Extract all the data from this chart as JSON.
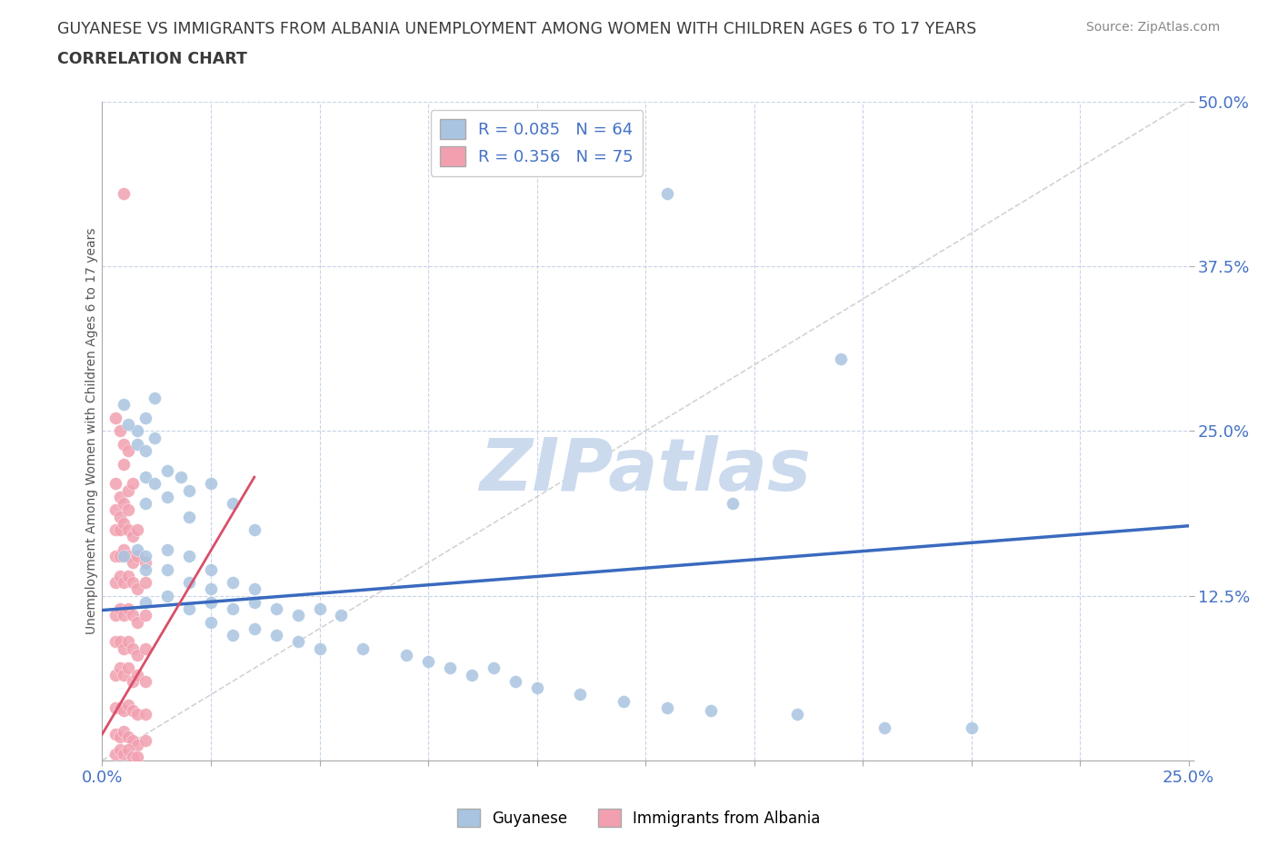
{
  "title_line1": "GUYANESE VS IMMIGRANTS FROM ALBANIA UNEMPLOYMENT AMONG WOMEN WITH CHILDREN AGES 6 TO 17 YEARS",
  "title_line2": "CORRELATION CHART",
  "source_text": "Source: ZipAtlas.com",
  "ylabel": "Unemployment Among Women with Children Ages 6 to 17 years",
  "xlim": [
    0.0,
    0.25
  ],
  "ylim": [
    0.0,
    0.5
  ],
  "xtick_vals": [
    0.0,
    0.025,
    0.05,
    0.075,
    0.1,
    0.125,
    0.15,
    0.175,
    0.2,
    0.225,
    0.25
  ],
  "ytick_vals": [
    0.0,
    0.125,
    0.25,
    0.375,
    0.5
  ],
  "ytick_labels": [
    "",
    "12.5%",
    "25.0%",
    "37.5%",
    "50.0%"
  ],
  "blue_color": "#a8c4e0",
  "pink_color": "#f2a0b0",
  "blue_line_color": "#3a6abf",
  "pink_line_color": "#d94f6a",
  "diagonal_color": "#c8c8c8",
  "watermark_color": "#ccdaee",
  "grid_color": "#c8d4e8",
  "title_color": "#3a3a3a",
  "tick_label_color": "#4472c4",
  "source_color": "#888888",
  "blue_scatter": [
    [
      0.005,
      0.27
    ],
    [
      0.008,
      0.25
    ],
    [
      0.01,
      0.26
    ],
    [
      0.012,
      0.275
    ],
    [
      0.008,
      0.24
    ],
    [
      0.01,
      0.235
    ],
    [
      0.012,
      0.245
    ],
    [
      0.006,
      0.255
    ],
    [
      0.01,
      0.215
    ],
    [
      0.012,
      0.21
    ],
    [
      0.015,
      0.22
    ],
    [
      0.018,
      0.215
    ],
    [
      0.01,
      0.195
    ],
    [
      0.015,
      0.2
    ],
    [
      0.02,
      0.205
    ],
    [
      0.025,
      0.21
    ],
    [
      0.02,
      0.185
    ],
    [
      0.03,
      0.195
    ],
    [
      0.035,
      0.175
    ],
    [
      0.005,
      0.155
    ],
    [
      0.008,
      0.16
    ],
    [
      0.01,
      0.155
    ],
    [
      0.015,
      0.16
    ],
    [
      0.01,
      0.145
    ],
    [
      0.015,
      0.145
    ],
    [
      0.02,
      0.155
    ],
    [
      0.025,
      0.145
    ],
    [
      0.02,
      0.135
    ],
    [
      0.025,
      0.13
    ],
    [
      0.03,
      0.135
    ],
    [
      0.035,
      0.13
    ],
    [
      0.01,
      0.12
    ],
    [
      0.015,
      0.125
    ],
    [
      0.02,
      0.115
    ],
    [
      0.025,
      0.12
    ],
    [
      0.03,
      0.115
    ],
    [
      0.035,
      0.12
    ],
    [
      0.04,
      0.115
    ],
    [
      0.045,
      0.11
    ],
    [
      0.05,
      0.115
    ],
    [
      0.055,
      0.11
    ],
    [
      0.025,
      0.105
    ],
    [
      0.03,
      0.095
    ],
    [
      0.035,
      0.1
    ],
    [
      0.04,
      0.095
    ],
    [
      0.045,
      0.09
    ],
    [
      0.05,
      0.085
    ],
    [
      0.06,
      0.085
    ],
    [
      0.07,
      0.08
    ],
    [
      0.075,
      0.075
    ],
    [
      0.08,
      0.07
    ],
    [
      0.085,
      0.065
    ],
    [
      0.09,
      0.07
    ],
    [
      0.095,
      0.06
    ],
    [
      0.1,
      0.055
    ],
    [
      0.11,
      0.05
    ],
    [
      0.12,
      0.045
    ],
    [
      0.13,
      0.04
    ],
    [
      0.14,
      0.038
    ],
    [
      0.16,
      0.035
    ],
    [
      0.18,
      0.025
    ],
    [
      0.2,
      0.025
    ],
    [
      0.145,
      0.195
    ],
    [
      0.13,
      0.43
    ],
    [
      0.17,
      0.305
    ]
  ],
  "pink_scatter": [
    [
      0.005,
      0.43
    ],
    [
      0.003,
      0.26
    ],
    [
      0.004,
      0.25
    ],
    [
      0.005,
      0.24
    ],
    [
      0.006,
      0.235
    ],
    [
      0.005,
      0.225
    ],
    [
      0.003,
      0.21
    ],
    [
      0.004,
      0.2
    ],
    [
      0.006,
      0.205
    ],
    [
      0.007,
      0.21
    ],
    [
      0.003,
      0.19
    ],
    [
      0.004,
      0.185
    ],
    [
      0.005,
      0.195
    ],
    [
      0.006,
      0.19
    ],
    [
      0.003,
      0.175
    ],
    [
      0.004,
      0.175
    ],
    [
      0.005,
      0.18
    ],
    [
      0.006,
      0.175
    ],
    [
      0.007,
      0.17
    ],
    [
      0.008,
      0.175
    ],
    [
      0.003,
      0.155
    ],
    [
      0.004,
      0.155
    ],
    [
      0.005,
      0.16
    ],
    [
      0.006,
      0.155
    ],
    [
      0.007,
      0.15
    ],
    [
      0.008,
      0.155
    ],
    [
      0.01,
      0.15
    ],
    [
      0.003,
      0.135
    ],
    [
      0.004,
      0.14
    ],
    [
      0.005,
      0.135
    ],
    [
      0.006,
      0.14
    ],
    [
      0.007,
      0.135
    ],
    [
      0.008,
      0.13
    ],
    [
      0.01,
      0.135
    ],
    [
      0.003,
      0.11
    ],
    [
      0.004,
      0.115
    ],
    [
      0.005,
      0.11
    ],
    [
      0.006,
      0.115
    ],
    [
      0.007,
      0.11
    ],
    [
      0.008,
      0.105
    ],
    [
      0.01,
      0.11
    ],
    [
      0.003,
      0.09
    ],
    [
      0.004,
      0.09
    ],
    [
      0.005,
      0.085
    ],
    [
      0.006,
      0.09
    ],
    [
      0.007,
      0.085
    ],
    [
      0.008,
      0.08
    ],
    [
      0.01,
      0.085
    ],
    [
      0.003,
      0.065
    ],
    [
      0.004,
      0.07
    ],
    [
      0.005,
      0.065
    ],
    [
      0.006,
      0.07
    ],
    [
      0.007,
      0.06
    ],
    [
      0.008,
      0.065
    ],
    [
      0.01,
      0.06
    ],
    [
      0.003,
      0.04
    ],
    [
      0.004,
      0.04
    ],
    [
      0.005,
      0.038
    ],
    [
      0.006,
      0.042
    ],
    [
      0.007,
      0.038
    ],
    [
      0.008,
      0.035
    ],
    [
      0.01,
      0.035
    ],
    [
      0.003,
      0.02
    ],
    [
      0.004,
      0.018
    ],
    [
      0.005,
      0.022
    ],
    [
      0.006,
      0.018
    ],
    [
      0.007,
      0.015
    ],
    [
      0.008,
      0.012
    ],
    [
      0.01,
      0.015
    ],
    [
      0.003,
      0.005
    ],
    [
      0.004,
      0.008
    ],
    [
      0.005,
      0.005
    ],
    [
      0.006,
      0.008
    ],
    [
      0.007,
      0.003
    ],
    [
      0.008,
      0.003
    ]
  ],
  "blue_line": [
    [
      0.0,
      0.114
    ],
    [
      0.25,
      0.178
    ]
  ],
  "pink_line": [
    [
      0.0,
      0.02
    ],
    [
      0.035,
      0.215
    ]
  ],
  "diag_line": [
    [
      0.0,
      0.0
    ],
    [
      0.25,
      0.5
    ]
  ]
}
